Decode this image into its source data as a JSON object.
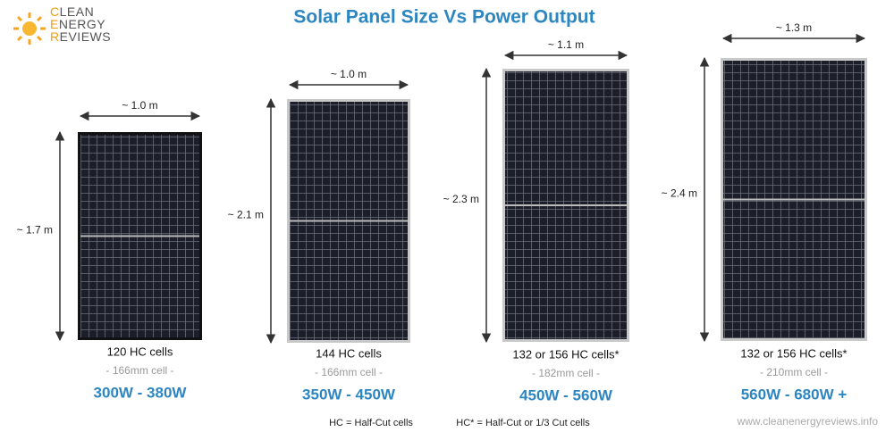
{
  "title": "Solar Panel Size Vs Power Output",
  "logo": {
    "lines": [
      "CLEAN",
      "ENERGY",
      "REVIEWS"
    ]
  },
  "panels": [
    {
      "width": "~ 1.0 m",
      "height": "~ 1.7 m",
      "cells": "120 HC cells",
      "cell_size": "- 166mm cell -",
      "power": "300W - 380W"
    },
    {
      "width": "~ 1.0 m",
      "height": "~ 2.1 m",
      "cells": "144 HC cells",
      "cell_size": "- 166mm cell -",
      "power": "350W - 450W"
    },
    {
      "width": "~ 1.1 m",
      "height": "~ 2.3 m",
      "cells": "132 or 156 HC cells*",
      "cell_size": "- 182mm cell -",
      "power": "450W - 560W"
    },
    {
      "width": "~ 1.3 m",
      "height": "~ 2.4 m",
      "cells": "132 or 156 HC cells*",
      "cell_size": "- 210mm cell -",
      "power": "560W  - 680W +"
    }
  ],
  "footnotes": [
    "HC = Half-Cut cells",
    "HC* = Half-Cut or 1/3 Cut cells"
  ],
  "website": "www.cleanenergyreviews.info"
}
